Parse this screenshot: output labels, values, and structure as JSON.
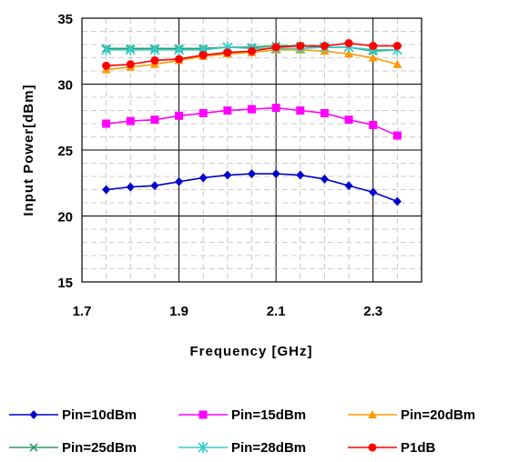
{
  "chart_data": {
    "type": "line",
    "xlabel": "Frequency [GHz]",
    "ylabel": "Input Power[dBm]",
    "xlim": [
      1.7,
      2.4
    ],
    "ylim": [
      15,
      35
    ],
    "x_ticks": [
      1.7,
      1.9,
      2.1,
      2.3
    ],
    "x_tick_labels": [
      "1.7",
      "1.9",
      "2.1",
      "2.3"
    ],
    "y_ticks": [
      15,
      20,
      25,
      30,
      35
    ],
    "y_tick_labels": [
      "15",
      "20",
      "25",
      "30",
      "35"
    ],
    "grid": true,
    "legend_position": "bottom",
    "x": [
      1.75,
      1.8,
      1.85,
      1.9,
      1.95,
      2.0,
      2.05,
      2.1,
      2.15,
      2.2,
      2.25,
      2.3,
      2.35
    ],
    "series": [
      {
        "name": "Pin=10dBm",
        "color": "#0000cc",
        "marker": "diamond",
        "values": [
          22.0,
          22.2,
          22.3,
          22.6,
          22.9,
          23.1,
          23.2,
          23.2,
          23.1,
          22.8,
          22.3,
          21.8,
          21.1
        ]
      },
      {
        "name": "Pin=15dBm",
        "color": "#ff00ff",
        "marker": "square",
        "values": [
          27.0,
          27.2,
          27.3,
          27.6,
          27.8,
          28.0,
          28.1,
          28.2,
          28.0,
          27.8,
          27.3,
          26.9,
          26.1
        ]
      },
      {
        "name": "Pin=20dBm",
        "color": "#ff9900",
        "marker": "triangle",
        "values": [
          31.1,
          31.3,
          31.5,
          31.8,
          32.1,
          32.3,
          32.4,
          32.6,
          32.6,
          32.5,
          32.3,
          32.0,
          31.5
        ]
      },
      {
        "name": "Pin=25dBm",
        "color": "#339966",
        "marker": "x",
        "values": [
          32.7,
          32.7,
          32.7,
          32.7,
          32.7,
          32.8,
          32.8,
          32.9,
          32.9,
          32.8,
          32.8,
          32.5,
          32.6
        ]
      },
      {
        "name": "Pin=28dBm",
        "color": "#33cccc",
        "marker": "asterisk",
        "values": [
          32.6,
          32.6,
          32.6,
          32.6,
          32.6,
          32.8,
          32.7,
          32.7,
          32.7,
          32.8,
          32.8,
          32.6,
          32.6
        ]
      },
      {
        "name": "P1dB",
        "color": "#ff0000",
        "marker": "circle",
        "values": [
          31.4,
          31.5,
          31.8,
          31.9,
          32.2,
          32.4,
          32.5,
          32.8,
          32.9,
          32.9,
          33.1,
          32.9,
          32.9
        ]
      }
    ]
  }
}
